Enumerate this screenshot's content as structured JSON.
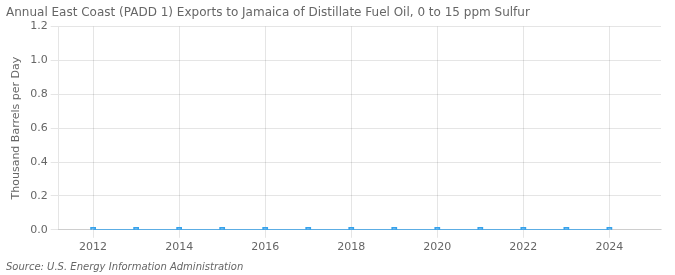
{
  "chart_data": {
    "type": "line",
    "title": "Annual East Coast (PADD 1) Exports to Jamaica of Distillate Fuel Oil, 0 to 15 ppm Sulfur",
    "ylabel": "Thousand Barrels per Day",
    "annotations": [
      "Source: U.S. Energy Information Administration"
    ],
    "x": [
      2012,
      2013,
      2014,
      2015,
      2016,
      2017,
      2018,
      2019,
      2020,
      2021,
      2022,
      2023,
      2024
    ],
    "values": [
      0.0,
      0.0,
      0.0,
      0.0,
      0.0,
      0.0,
      0.0,
      0.0,
      0.0,
      0.0,
      0.0,
      0.0,
      0.0
    ],
    "marker": "square",
    "xlim": [
      2011.2,
      2025.2
    ],
    "ylim": [
      0.0,
      1.2
    ],
    "xticks": [
      2012,
      2014,
      2016,
      2018,
      2020,
      2022,
      2024
    ],
    "yticks": [
      {
        "value": 0,
        "label": "0.0"
      },
      0.2,
      0.4,
      0.6,
      0.8,
      {
        "value": 1,
        "label": "1.0"
      },
      1.2
    ],
    "grid": true
  }
}
